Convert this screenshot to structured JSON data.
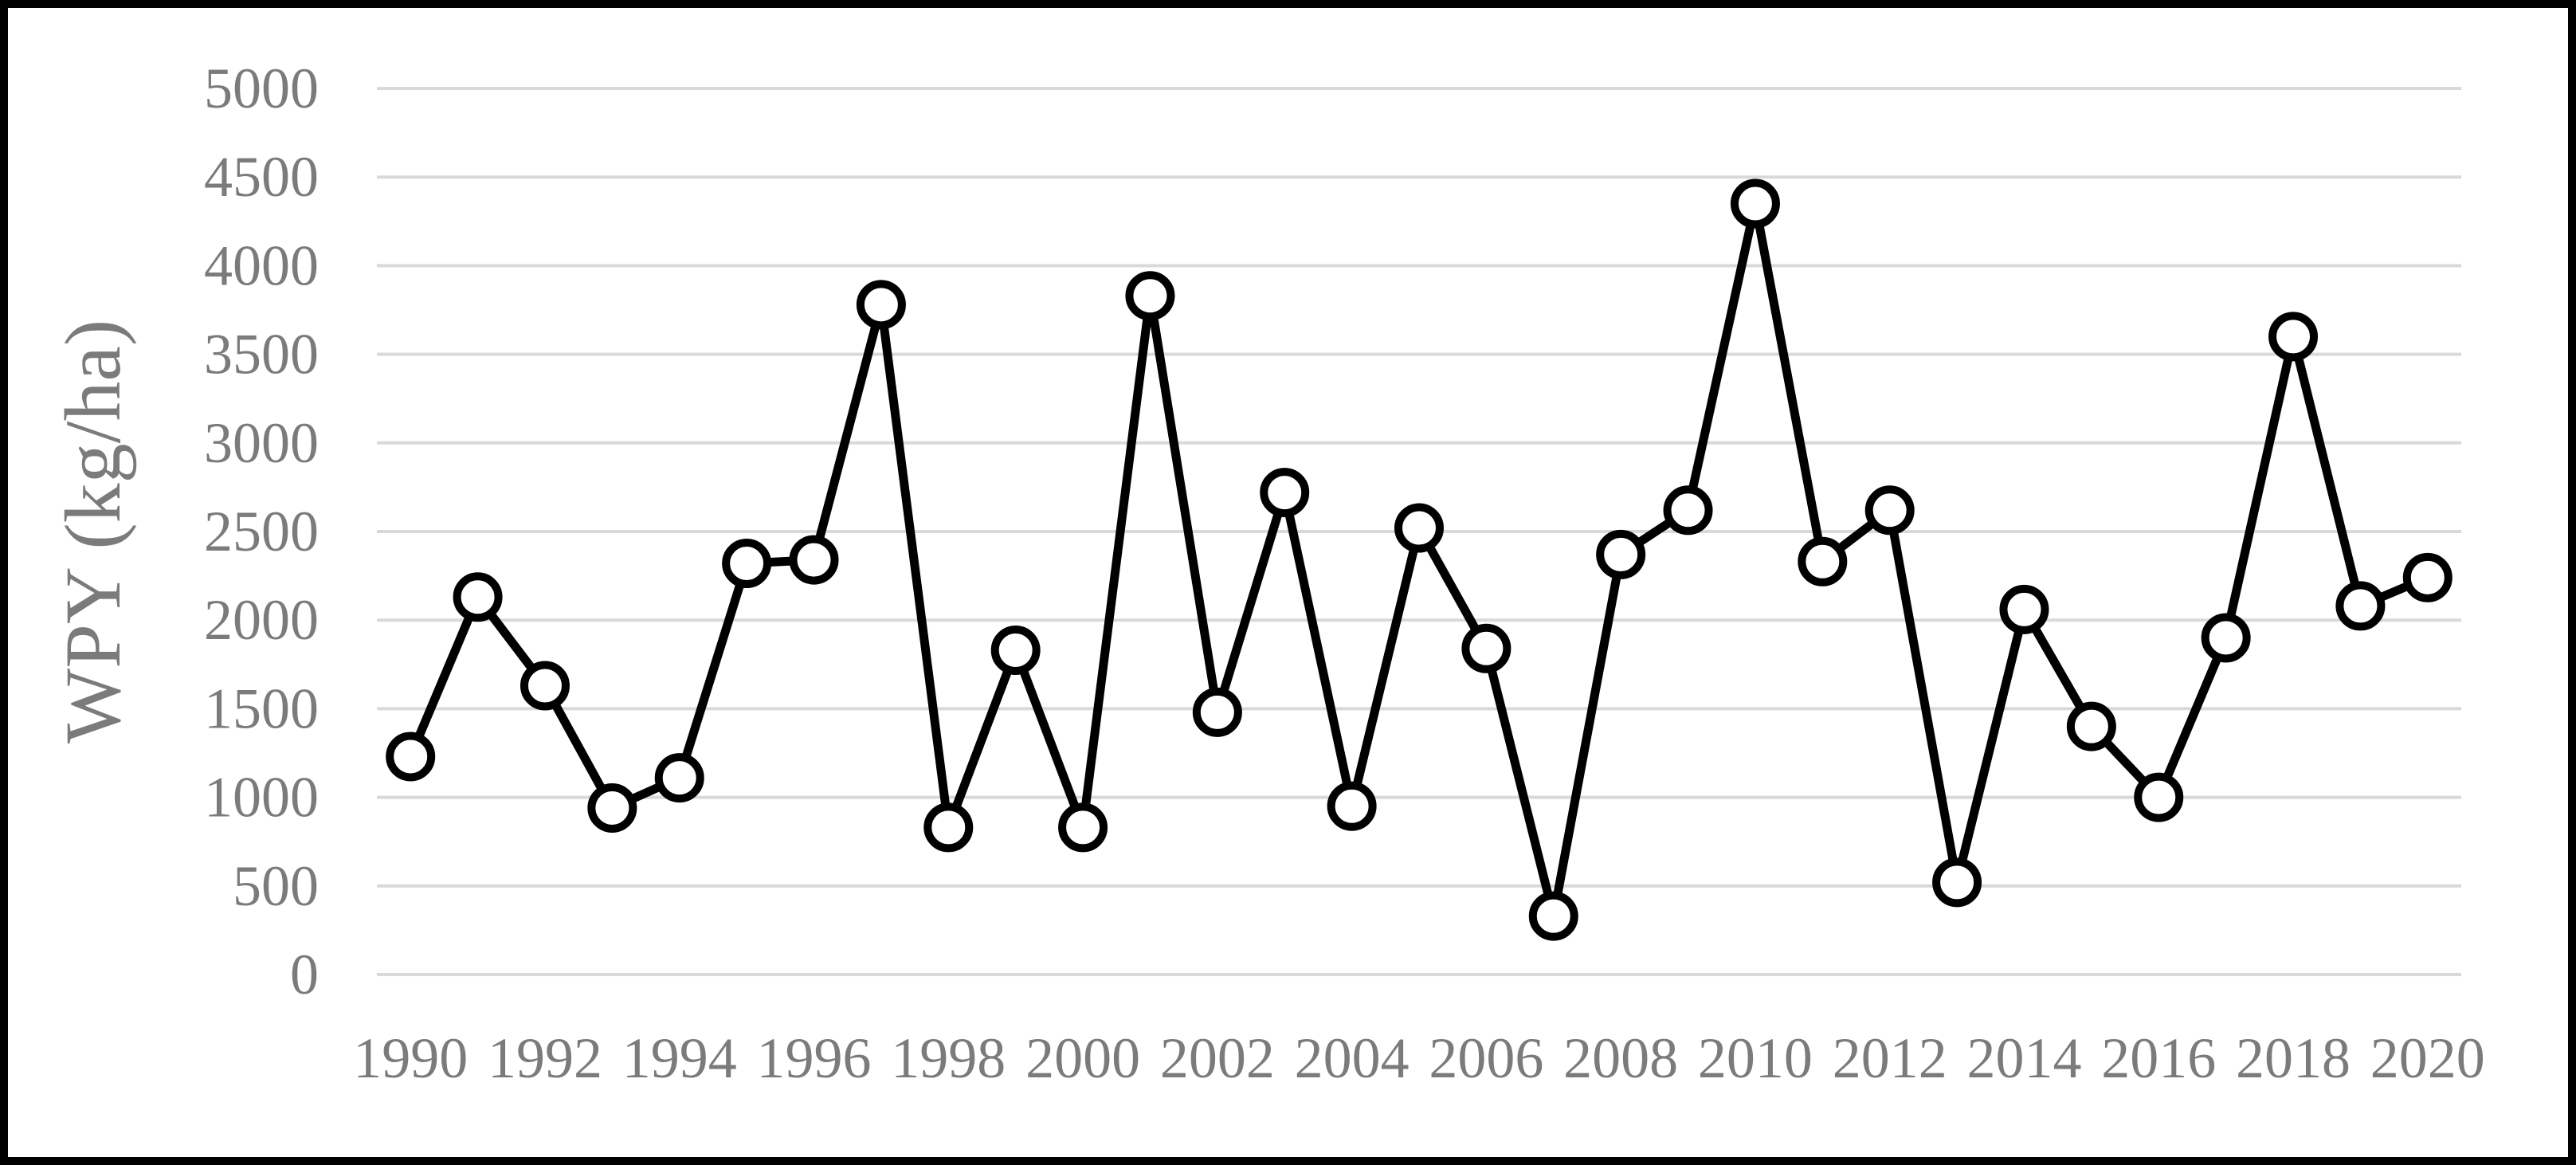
{
  "chart_data": {
    "type": "line",
    "title": "",
    "ylabel": "WPY (kg/ha)",
    "xlabel": "",
    "x": [
      1990,
      1991,
      1992,
      1993,
      1994,
      1995,
      1996,
      1997,
      1998,
      1999,
      2000,
      2001,
      2002,
      2003,
      2004,
      2005,
      2006,
      2007,
      2008,
      2009,
      2010,
      2011,
      2012,
      2013,
      2014,
      2015,
      2016,
      2017,
      2018,
      2019,
      2020
    ],
    "values": [
      1230,
      2130,
      1630,
      940,
      1110,
      2320,
      2340,
      3780,
      830,
      1830,
      830,
      3830,
      1480,
      2720,
      950,
      2520,
      1840,
      330,
      2370,
      2620,
      4350,
      2330,
      2620,
      520,
      2060,
      1400,
      1000,
      1900,
      3600,
      2080,
      2240
    ],
    "ylim": [
      0,
      5000
    ],
    "ytick_step": 500,
    "yticks": [
      0,
      500,
      1000,
      1500,
      2000,
      2500,
      3000,
      3500,
      4000,
      4500,
      5000
    ],
    "xtick_labels": [
      "1990",
      "1992",
      "1994",
      "1996",
      "1998",
      "2000",
      "2002",
      "2004",
      "2006",
      "2008",
      "2010",
      "2012",
      "2014",
      "2016",
      "2018",
      "2020"
    ],
    "grid": "horizontal",
    "legend": "none",
    "marker": "open-circle",
    "line_color": "#000000",
    "marker_fill": "#ffffff",
    "gridline_color": "#d9d9d9",
    "axis_label_color": "#7b7b7b",
    "border_color": "#000000",
    "background_color": "#ffffff"
  }
}
